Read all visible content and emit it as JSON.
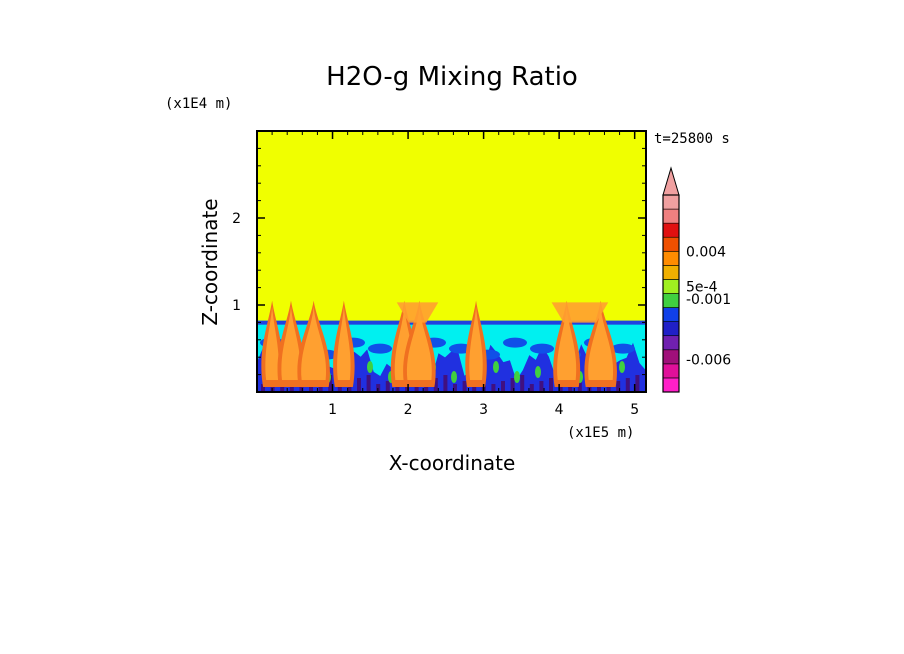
{
  "chart_data": {
    "type": "heatmap",
    "title": "H2O-g Mixing Ratio",
    "xlabel": "X-coordinate",
    "ylabel": "Z-coordinate",
    "x_scale_label": "(x1E5 m)",
    "y_scale_label": "(x1E4 m)",
    "time_label": "t=25800 s",
    "xlim": [
      0,
      5.15
    ],
    "ylim": [
      0,
      3.0
    ],
    "x_ticks": [
      1,
      2,
      3,
      4,
      5
    ],
    "y_ticks": [
      1,
      2
    ],
    "colorbar": {
      "colors": [
        "#ff1fc8",
        "#e0109a",
        "#a0107a",
        "#7020b0",
        "#2020c8",
        "#1040e8",
        "#40d040",
        "#a0f020",
        "#f0b000",
        "#ff8c00",
        "#f05000",
        "#e01010",
        "#f08080",
        "#f0a0a0"
      ],
      "labels": [
        {
          "text": "0.004",
          "level": 10
        },
        {
          "text": "5e-4",
          "level": 7.5
        },
        {
          "text": "-0.001",
          "level": 6.6
        },
        {
          "text": "-0.006",
          "level": 2.3
        }
      ]
    },
    "field": {
      "background_color": "#f0ff00",
      "boundary_layer_top": 0.82,
      "low_color": "#00f0f0",
      "deep_color": "#2030e0",
      "plume_color": "#ffa030",
      "plume_edge_color": "#f07020",
      "plume_centers_x": [
        0.2,
        0.45,
        0.75,
        1.15,
        1.95,
        2.15,
        2.9,
        4.1,
        4.55
      ]
    }
  }
}
